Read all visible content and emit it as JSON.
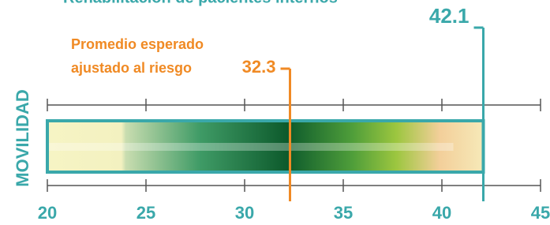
{
  "chart_data": {
    "type": "gauge-bar",
    "title": "Rehabilitación de pacientes internos",
    "ylabel": "MOVILIDAD",
    "values": [
      42.1
    ],
    "color": "#3aa8aa",
    "reference": {
      "label_lines": [
        "Promedio esperado",
        "ajustado al riesgo"
      ],
      "value": 32.3,
      "color": "#f08a24"
    },
    "xlim": [
      20,
      45
    ],
    "xticks": [
      20,
      25,
      30,
      35,
      40,
      45
    ]
  }
}
